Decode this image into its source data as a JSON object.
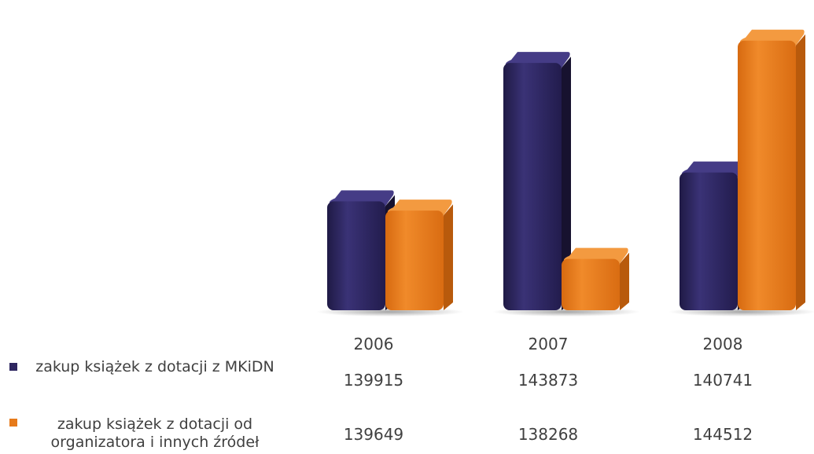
{
  "chart_data": {
    "type": "bar",
    "categories": [
      "2006",
      "2007",
      "2008"
    ],
    "series": [
      {
        "name": "zakup książek z dotacji z MKiDN",
        "color": "#2E2660",
        "values": [
          139915,
          143873,
          140741
        ],
        "value_labels": [
          "139915",
          "143873",
          "140741"
        ]
      },
      {
        "name": "zakup książek z dotacji od organizatora i innych źródeł",
        "color": "#E67A1A",
        "values": [
          139649,
          138268,
          144512
        ],
        "value_labels": [
          "139649",
          "138268",
          "144512"
        ]
      }
    ],
    "ylim": [
      136800,
      145000
    ],
    "grid": false,
    "legend_placement": "left, as data table row headers"
  }
}
